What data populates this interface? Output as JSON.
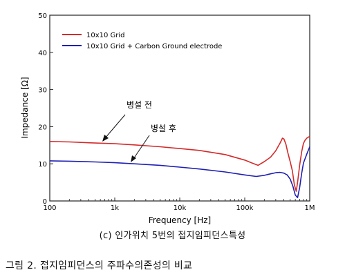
{
  "chart_data": {
    "type": "line",
    "xlabel": "Frequency [Hz]",
    "ylabel": "Impedance [Ω]",
    "xscale": "log",
    "xlim": [
      100,
      1000000
    ],
    "ylim": [
      0,
      50
    ],
    "x_ticks": [
      100,
      1000,
      10000,
      100000,
      1000000
    ],
    "x_tick_labels": [
      "100",
      "1k",
      "10k",
      "100k",
      "1M"
    ],
    "y_ticks": [
      0,
      10,
      20,
      30,
      40,
      50
    ],
    "y_tick_labels": [
      "0",
      "10",
      "20",
      "30",
      "40",
      "50"
    ],
    "grid": false,
    "legend_position": "top-left",
    "series": [
      {
        "name": "10x10 Grid",
        "color": "#d42a2a",
        "x": [
          100,
          200,
          500,
          1000,
          2000,
          5000,
          10000,
          20000,
          50000,
          100000,
          130000,
          160000,
          200000,
          250000,
          300000,
          350000,
          380000,
          400000,
          430000,
          460000,
          500000,
          540000,
          580000,
          620000,
          650000,
          700000,
          750000,
          800000,
          850000,
          900000,
          1000000
        ],
        "y": [
          16.0,
          15.9,
          15.6,
          15.4,
          15.1,
          14.6,
          14.1,
          13.6,
          12.5,
          11.0,
          10.2,
          9.6,
          10.6,
          11.8,
          13.5,
          15.6,
          16.9,
          16.7,
          15.3,
          13.0,
          10.6,
          8.2,
          4.3,
          2.6,
          5.0,
          9.6,
          13.2,
          15.5,
          16.4,
          16.9,
          17.4
        ]
      },
      {
        "name": "10x10 Grid + Carbon Ground electrode",
        "color": "#1f1fb4",
        "x": [
          100,
          200,
          500,
          1000,
          2000,
          5000,
          10000,
          20000,
          50000,
          100000,
          150000,
          200000,
          250000,
          300000,
          350000,
          400000,
          450000,
          500000,
          550000,
          600000,
          650000,
          700000,
          750000,
          800000,
          900000,
          1000000
        ],
        "y": [
          10.8,
          10.7,
          10.5,
          10.3,
          10.0,
          9.6,
          9.1,
          8.6,
          7.8,
          7.0,
          6.6,
          6.9,
          7.3,
          7.6,
          7.7,
          7.5,
          7.0,
          5.9,
          4.0,
          1.6,
          0.9,
          3.6,
          7.4,
          10.2,
          12.6,
          14.6
        ]
      }
    ]
  },
  "annotations": [
    {
      "text": "병설 전"
    },
    {
      "text": "병설 후"
    }
  ],
  "captions": {
    "sub": "(c) 인가위치 5번의 접지임피던스특성",
    "figure": "그림 2. 접지임피던스의 주파수의존성의 비교"
  }
}
